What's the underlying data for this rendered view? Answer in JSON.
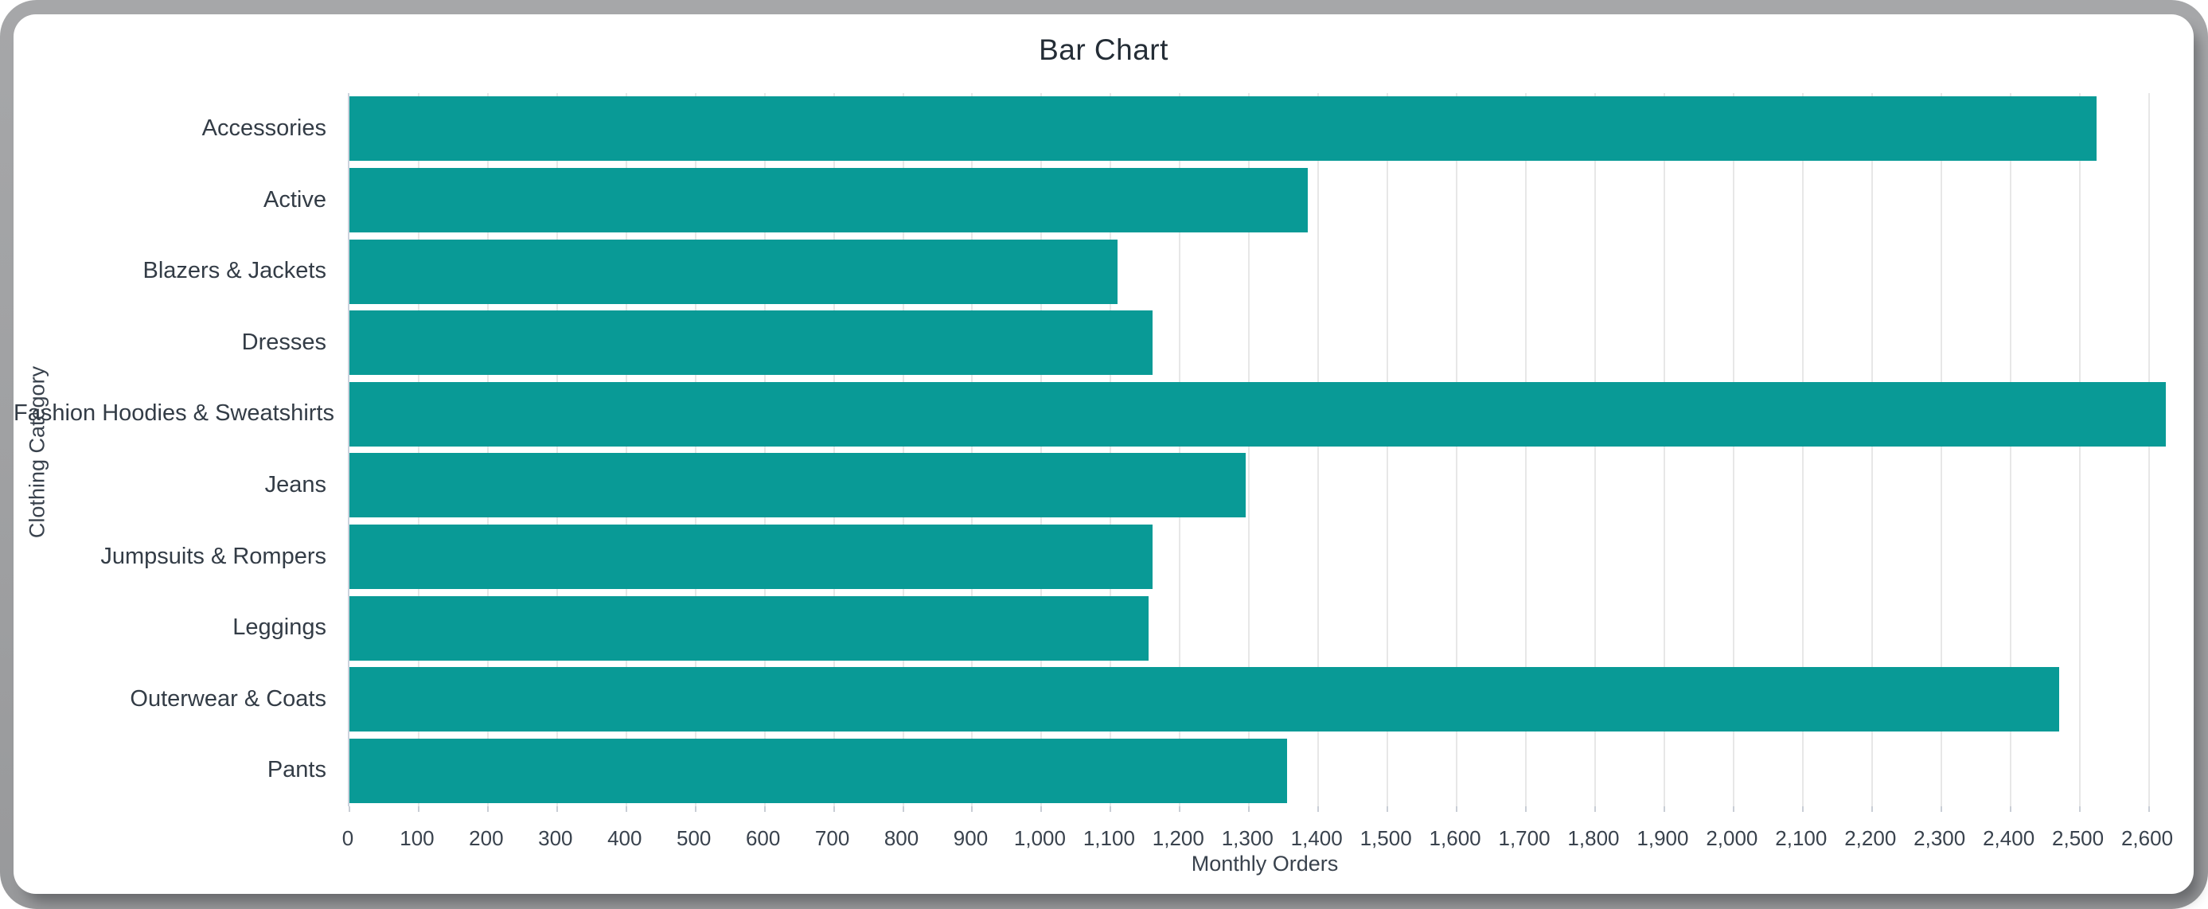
{
  "chart_data": {
    "type": "bar",
    "orientation": "horizontal",
    "title": "Bar Chart",
    "xlabel": "Monthly Orders",
    "ylabel": "Clothing Category",
    "categories": [
      "Accessories",
      "Active",
      "Blazers & Jackets",
      "Dresses",
      "Fashion Hoodies & Sweatshirts",
      "Jeans",
      "Jumpsuits & Rompers",
      "Leggings",
      "Outerwear & Coats",
      "Pants"
    ],
    "values": [
      2525,
      1385,
      1110,
      1160,
      2625,
      1295,
      1160,
      1155,
      2470,
      1355
    ],
    "xticks": [
      "0",
      "100",
      "200",
      "300",
      "400",
      "500",
      "600",
      "700",
      "800",
      "900",
      "1,000",
      "1,100",
      "1,200",
      "1,300",
      "1,400",
      "1,500",
      "1,600",
      "1,700",
      "1,800",
      "1,900",
      "2,000",
      "2,100",
      "2,200",
      "2,300",
      "2,400",
      "2,500",
      "2,600"
    ],
    "xtick_step": 100,
    "xlim": [
      0,
      2650
    ],
    "grid": true,
    "legend": false,
    "bar_color": "#099a96"
  },
  "colors": {
    "bar": "#099a96",
    "frame": "#9fa0a2",
    "card": "#ffffff",
    "gridline": "#e7e7e7",
    "axis_line": "#ccd3dd",
    "title_text": "#242d36",
    "label_text": "#39424d",
    "category_text": "#333c46"
  }
}
